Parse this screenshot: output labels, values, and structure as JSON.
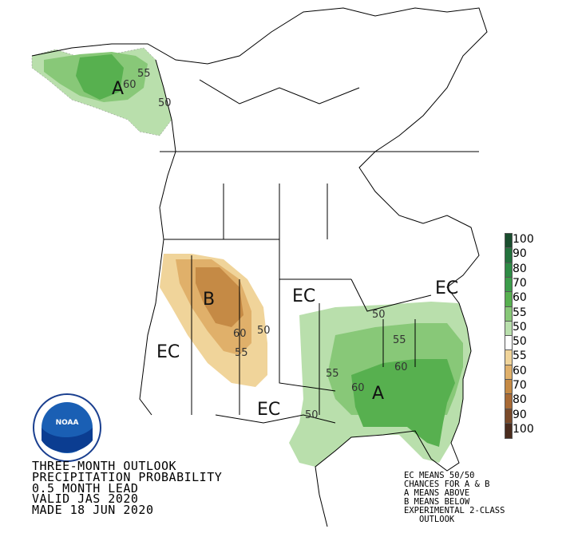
{
  "title_lines": [
    "THREE-MONTH OUTLOOK",
    "PRECIPITATION PROBABILITY",
    "0.5 MONTH LEAD",
    "VALID JAS 2020",
    "MADE 18 JUN 2020"
  ],
  "note_lines": [
    "EC MEANS 50/50",
    "CHANCES FOR A & B",
    "A MEANS ABOVE",
    "B MEANS BELOW",
    "EXPERIMENTAL 2-CLASS",
    "   OUTLOOK"
  ],
  "colorbar": [
    {
      "label": "100",
      "color": "#1a4d2e"
    },
    {
      "label": "90",
      "color": "#23723d"
    },
    {
      "label": "80",
      "color": "#2e8b45"
    },
    {
      "label": "70",
      "color": "#3c9c4a"
    },
    {
      "label": "60",
      "color": "#57b04f"
    },
    {
      "label": "55",
      "color": "#88c878"
    },
    {
      "label": "50",
      "color": "#b9dfac"
    },
    {
      "label": "50",
      "color": "#ffffff"
    },
    {
      "label": "55",
      "color": "#f0d49a"
    },
    {
      "label": "60",
      "color": "#e0b06a"
    },
    {
      "label": "70",
      "color": "#c58a45"
    },
    {
      "label": "80",
      "color": "#a86a35"
    },
    {
      "label": "90",
      "color": "#7a4a2a"
    },
    {
      "label": "100",
      "color": "#4a2c1e"
    }
  ],
  "map_labels": {
    "ec_west": "EC",
    "ec_central": "EC",
    "ec_northeast": "EC",
    "ec_southwest": "EC",
    "a_alaska": "A",
    "a_southeast": "A",
    "b_northwest": "B"
  },
  "contour_labels": {
    "ak_60": "60",
    "ak_55": "55",
    "ak_50": "50",
    "nw_60": "60",
    "nw_50": "50",
    "nw_55": "55",
    "se_50a": "50",
    "se_55a": "55",
    "se_55b": "55",
    "se_60a": "60",
    "se_60b": "60",
    "se_50b": "50"
  },
  "logo_text": "NOAA"
}
